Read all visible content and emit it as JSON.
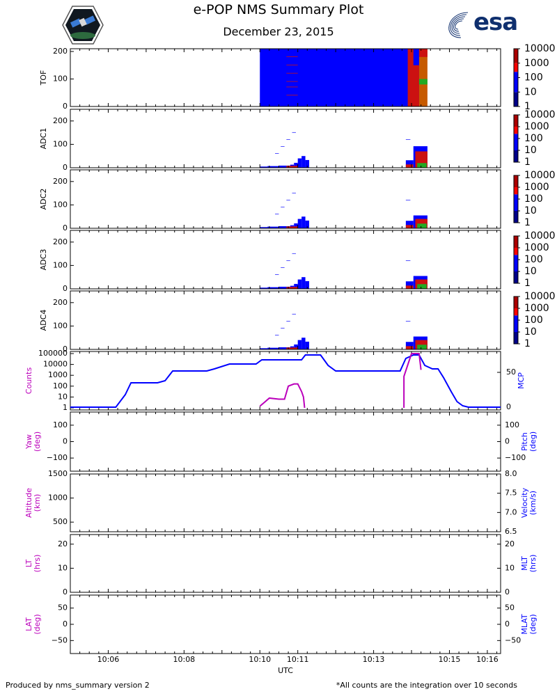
{
  "header": {
    "title": "e-POP NMS Summary Plot",
    "date": "December 23, 2015",
    "esa_logo_text": "esa"
  },
  "footer": {
    "left": "Produced by nms_summary version 2",
    "right": "*All counts are the integration over 10 seconds"
  },
  "colors": {
    "blue": "#0000ff",
    "magenta": "#bb00bb",
    "red": "#cc1111",
    "green": "#22aa22",
    "esa_navy": "#0f2f6e"
  },
  "chart_data": {
    "type": "summary-plot",
    "xlabel": "UTC",
    "x_range_minutes": [
      5.0,
      16.35
    ],
    "x_ticks": [
      {
        "label": "10:06",
        "min": 6
      },
      {
        "label": "10:08",
        "min": 8
      },
      {
        "label": "10:10",
        "min": 10
      },
      {
        "label": "10:11",
        "min": 11
      },
      {
        "label": "10:13",
        "min": 13
      },
      {
        "label": "10:15",
        "min": 15
      },
      {
        "label": "10:16",
        "min": 16
      }
    ],
    "colorbar_ticks": [
      "10000",
      "1000",
      "100",
      "10",
      "1"
    ],
    "spectrograms": [
      {
        "ylabel": "TOF",
        "yrange": [
          0,
          210
        ],
        "yticks": [
          "0",
          "100",
          "200"
        ],
        "ytick_values": [
          0,
          100,
          200
        ]
      },
      {
        "ylabel": "ADC1",
        "yrange": [
          0,
          250
        ],
        "yticks": [
          "0",
          "100",
          "200"
        ],
        "ytick_values": [
          0,
          100,
          200
        ]
      },
      {
        "ylabel": "ADC2",
        "yrange": [
          0,
          250
        ],
        "yticks": [
          "0",
          "100",
          "200"
        ],
        "ytick_values": [
          0,
          100,
          200
        ]
      },
      {
        "ylabel": "ADC3",
        "yrange": [
          0,
          250
        ],
        "yticks": [
          "0",
          "100",
          "200"
        ],
        "ytick_values": [
          0,
          100,
          200
        ]
      },
      {
        "ylabel": "ADC4",
        "yrange": [
          0,
          250
        ],
        "yticks": [
          "0",
          "100",
          "200"
        ],
        "ytick_values": [
          0,
          100,
          200
        ]
      }
    ],
    "counts_panel": {
      "ylabel_left": "Counts",
      "ylabel_right": "MCP",
      "yticks_left": [
        "100000",
        "10000",
        "1000",
        "100",
        "10",
        "1"
      ],
      "yticks_right": [
        "50",
        "0"
      ],
      "left_log_range": [
        0,
        5
      ],
      "right_range": [
        0,
        80
      ],
      "counts_series": [
        [
          10.0,
          0.15
        ],
        [
          10.25,
          0.9
        ],
        [
          10.5,
          0.8
        ],
        [
          10.65,
          0.8
        ],
        [
          10.75,
          2.0
        ],
        [
          10.9,
          2.2
        ],
        [
          11.0,
          2.2
        ],
        [
          11.1,
          1.5
        ],
        [
          11.15,
          1.0
        ],
        [
          11.18,
          0.0
        ],
        [
          13.8,
          0.0
        ],
        [
          13.8,
          2.9
        ],
        [
          14.0,
          5.0
        ],
        [
          14.2,
          5.0
        ],
        [
          14.25,
          3.5
        ]
      ],
      "mcp_series": [
        [
          5.0,
          0
        ],
        [
          6.2,
          0
        ],
        [
          6.45,
          18
        ],
        [
          6.6,
          35
        ],
        [
          7.3,
          35
        ],
        [
          7.5,
          38
        ],
        [
          7.7,
          52
        ],
        [
          8.6,
          52
        ],
        [
          8.8,
          55
        ],
        [
          9.2,
          62
        ],
        [
          9.9,
          62
        ],
        [
          10.05,
          68
        ],
        [
          11.1,
          68
        ],
        [
          11.2,
          75
        ],
        [
          11.6,
          75
        ],
        [
          11.8,
          60
        ],
        [
          12.0,
          52
        ],
        [
          13.7,
          52
        ],
        [
          13.85,
          70
        ],
        [
          14.05,
          75
        ],
        [
          14.2,
          75
        ],
        [
          14.35,
          60
        ],
        [
          14.55,
          55
        ],
        [
          14.7,
          55
        ],
        [
          14.85,
          42
        ],
        [
          15.05,
          22
        ],
        [
          15.2,
          8
        ],
        [
          15.35,
          2
        ],
        [
          15.5,
          0
        ],
        [
          16.35,
          0
        ]
      ]
    },
    "attitude_panel": {
      "ylabel_left": "Yaw\n(deg)",
      "ylabel_right": "Pitch\n(deg)",
      "yticks_left": [
        "100",
        "0",
        "−100"
      ],
      "yticks_right": [
        "100",
        "0",
        "−100"
      ],
      "yrange": [
        -180,
        180
      ],
      "ytick_values": [
        100,
        0,
        -100
      ]
    },
    "altitude_panel": {
      "ylabel_left": "Altitude\n(km)",
      "ylabel_right": "Velocity\n(km/s)",
      "yticks_left": [
        "1500",
        "1000",
        "500"
      ],
      "yticks_right": [
        "8.0",
        "7.5",
        "7.0",
        "6.5"
      ],
      "left_range": [
        300,
        1500
      ],
      "right_range": [
        6.5,
        8.0
      ],
      "left_values": [
        1500,
        1000,
        500
      ],
      "right_values": [
        8.0,
        7.5,
        7.0,
        6.5
      ]
    },
    "time_panel": {
      "ylabel_left": "LT\n(hrs)",
      "ylabel_right": "MLT\n(hrs)",
      "yticks_left": [
        "20",
        "10",
        "0"
      ],
      "yticks_right": [
        "20",
        "10",
        "0"
      ],
      "yrange": [
        0,
        24
      ],
      "ytick_values": [
        20,
        10,
        0
      ]
    },
    "lat_panel": {
      "ylabel_left": "LAT\n(deg)",
      "ylabel_right": "MLAT\n(deg)",
      "yticks_left": [
        "50",
        "0",
        "−50"
      ],
      "yticks_right": [
        "50",
        "0",
        "−50"
      ],
      "yrange": [
        -90,
        90
      ],
      "ytick_values": [
        50,
        0,
        -50
      ]
    }
  }
}
